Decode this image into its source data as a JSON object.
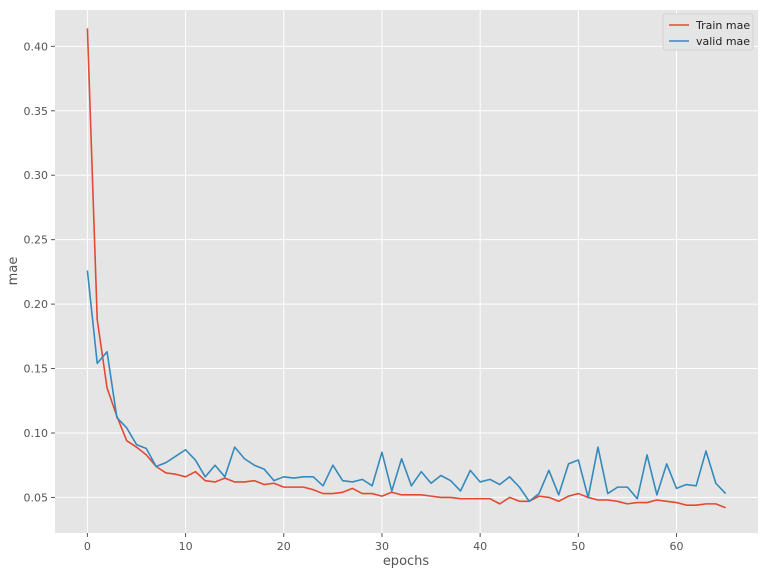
{
  "chart_data": {
    "type": "line",
    "xlabel": "epochs",
    "ylabel": "mae",
    "xlim": [
      -3.3,
      68.3
    ],
    "ylim": [
      0.0224,
      0.4282
    ],
    "xticks": [
      0,
      10,
      20,
      30,
      40,
      50,
      60
    ],
    "xtick_labels": [
      "0",
      "10",
      "20",
      "30",
      "40",
      "50",
      "60"
    ],
    "yticks": [
      0.05,
      0.1,
      0.15,
      0.2,
      0.25,
      0.3,
      0.35,
      0.4
    ],
    "ytick_labels": [
      "0.05",
      "0.10",
      "0.15",
      "0.20",
      "0.25",
      "0.30",
      "0.35",
      "0.40"
    ],
    "grid": true,
    "legend_position": "top-right",
    "background": "#e5e5e5",
    "series": [
      {
        "name": "Train mae",
        "color": "#e24a33",
        "x": [
          0,
          1,
          2,
          3,
          4,
          5,
          6,
          7,
          8,
          9,
          10,
          11,
          12,
          13,
          14,
          15,
          16,
          17,
          18,
          19,
          20,
          21,
          22,
          23,
          24,
          25,
          26,
          27,
          28,
          29,
          30,
          31,
          32,
          33,
          34,
          35,
          36,
          37,
          38,
          39,
          40,
          41,
          42,
          43,
          44,
          45,
          46,
          47,
          48,
          49,
          50,
          51,
          52,
          53,
          54,
          55,
          56,
          57,
          58,
          59,
          60,
          61,
          62,
          63,
          64,
          65
        ],
        "values": [
          0.414,
          0.188,
          0.135,
          0.113,
          0.094,
          0.089,
          0.083,
          0.074,
          0.069,
          0.068,
          0.066,
          0.07,
          0.063,
          0.062,
          0.065,
          0.062,
          0.062,
          0.063,
          0.06,
          0.061,
          0.058,
          0.058,
          0.058,
          0.056,
          0.053,
          0.053,
          0.054,
          0.057,
          0.053,
          0.053,
          0.051,
          0.054,
          0.052,
          0.052,
          0.052,
          0.051,
          0.05,
          0.05,
          0.049,
          0.049,
          0.049,
          0.049,
          0.045,
          0.05,
          0.047,
          0.047,
          0.051,
          0.05,
          0.047,
          0.051,
          0.053,
          0.05,
          0.048,
          0.048,
          0.047,
          0.045,
          0.046,
          0.046,
          0.048,
          0.047,
          0.046,
          0.044,
          0.044,
          0.045,
          0.045,
          0.042
        ]
      },
      {
        "name": "valid mae",
        "color": "#348abd",
        "x": [
          0,
          1,
          2,
          3,
          4,
          5,
          6,
          7,
          8,
          9,
          10,
          11,
          12,
          13,
          14,
          15,
          16,
          17,
          18,
          19,
          20,
          21,
          22,
          23,
          24,
          25,
          26,
          27,
          28,
          29,
          30,
          31,
          32,
          33,
          34,
          35,
          36,
          37,
          38,
          39,
          40,
          41,
          42,
          43,
          44,
          45,
          46,
          47,
          48,
          49,
          50,
          51,
          52,
          53,
          54,
          55,
          56,
          57,
          58,
          59,
          60,
          61,
          62,
          63,
          64,
          65
        ],
        "values": [
          0.226,
          0.154,
          0.163,
          0.112,
          0.104,
          0.091,
          0.088,
          0.074,
          0.077,
          0.082,
          0.087,
          0.079,
          0.066,
          0.075,
          0.066,
          0.089,
          0.08,
          0.075,
          0.072,
          0.063,
          0.066,
          0.065,
          0.066,
          0.066,
          0.059,
          0.075,
          0.063,
          0.062,
          0.064,
          0.059,
          0.085,
          0.055,
          0.08,
          0.059,
          0.07,
          0.061,
          0.067,
          0.063,
          0.055,
          0.071,
          0.062,
          0.064,
          0.06,
          0.066,
          0.058,
          0.047,
          0.053,
          0.071,
          0.052,
          0.076,
          0.079,
          0.05,
          0.089,
          0.053,
          0.058,
          0.058,
          0.049,
          0.083,
          0.052,
          0.076,
          0.057,
          0.06,
          0.059,
          0.086,
          0.061,
          0.053
        ]
      }
    ]
  }
}
